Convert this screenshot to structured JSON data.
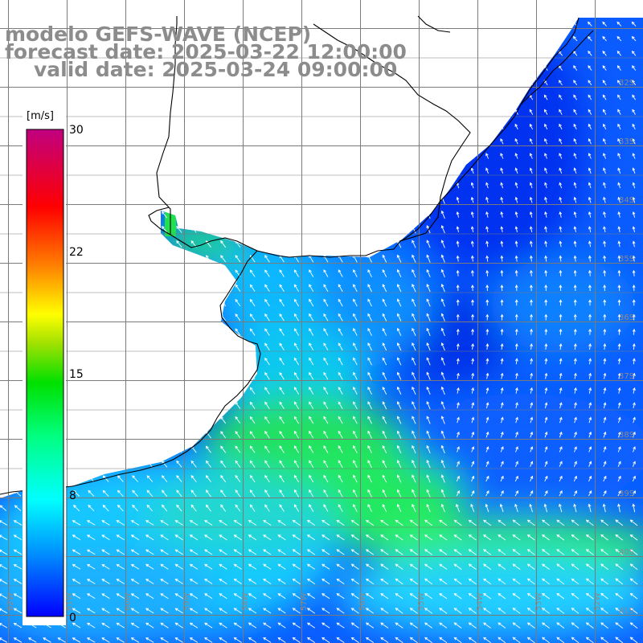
{
  "title": {
    "line1": "modelo GEFS-WAVE (NCEP)",
    "line2": "forecast date: 2025-03-22 12:00:00",
    "line3": "valid date: 2025-03-24 09:00:00"
  },
  "colorbar": {
    "unit": "[m/s]",
    "ticks": [
      "30",
      "22",
      "15",
      "8",
      "0"
    ],
    "tick_values": [
      30,
      22,
      15,
      8,
      0
    ],
    "colors": [
      "#0000ff",
      "#0064ff",
      "#00c8ff",
      "#00ffd0",
      "#00ff60",
      "#40e000",
      "#b0e000",
      "#ffff00",
      "#ffa000",
      "#ff4000",
      "#ff0000",
      "#e00040",
      "#c00080"
    ]
  },
  "map": {
    "lat_labels": [
      "32S",
      "33S",
      "34S",
      "35S",
      "36S",
      "37S",
      "38S",
      "39S",
      "40S",
      "41S"
    ],
    "lon_labels": [
      "62W",
      "61W",
      "60W",
      "59W",
      "58W",
      "57W",
      "56W",
      "55W",
      "54W",
      "53W",
      "52W"
    ],
    "colors": {
      "land": "#ffffff",
      "coastline": "#000000",
      "grid": "#7a7a7a",
      "arrow": "#ffffff"
    },
    "ocean_color_regions": [
      {
        "region": "southeast-open-ocean",
        "speed_ms": 3,
        "color": "#0050ff"
      },
      {
        "region": "uruguay-coast",
        "speed_ms": 4,
        "color": "#0064ff"
      },
      {
        "region": "buenos-aires-coast",
        "speed_ms": 9,
        "color": "#00e0e0"
      },
      {
        "region": "central-jet",
        "speed_ms": 12,
        "color": "#00e040"
      },
      {
        "region": "southern-band",
        "speed_ms": 11,
        "color": "#20ff80"
      }
    ]
  }
}
